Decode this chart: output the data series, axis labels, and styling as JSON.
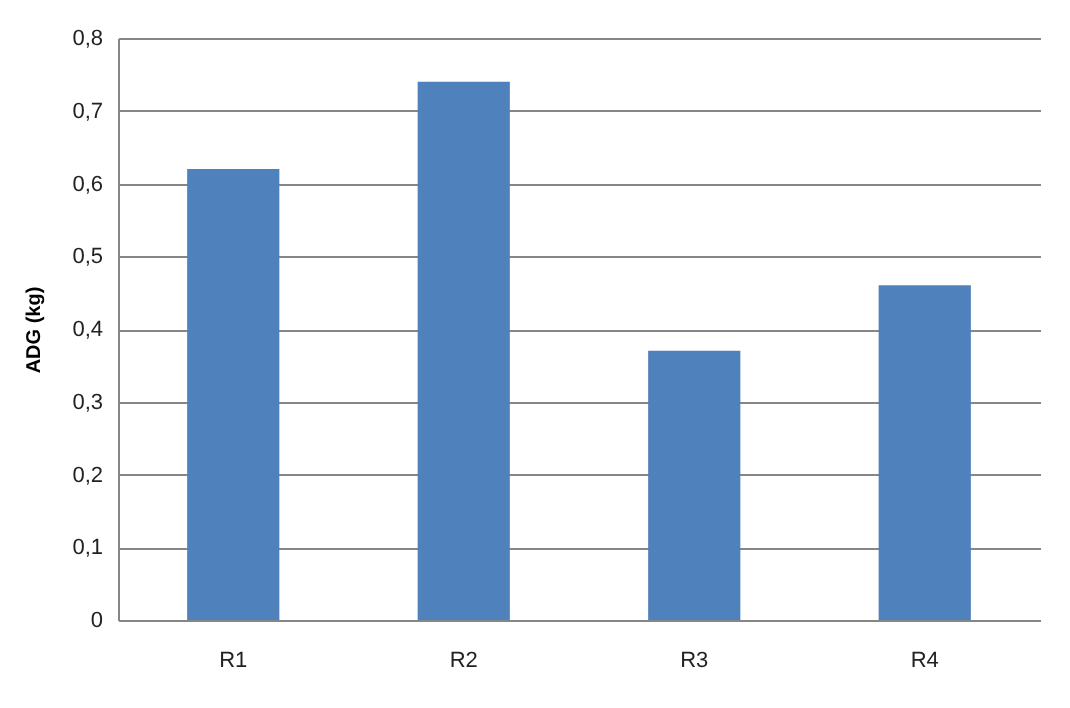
{
  "chart_data": {
    "type": "bar",
    "ylabel": "ADG (kg)",
    "categories": [
      "R1",
      "R2",
      "R3",
      "R4"
    ],
    "values": [
      0.62,
      0.74,
      0.37,
      0.46
    ],
    "color": "#4f81bd",
    "ylim": [
      0,
      0.8
    ],
    "yticks": [
      0,
      {
        "value": 0.1,
        "label": "0,1"
      },
      {
        "value": 0.2,
        "label": "0,2"
      },
      {
        "value": 0.3,
        "label": "0,3"
      },
      {
        "value": 0.4,
        "label": "0,4"
      },
      {
        "value": 0.5,
        "label": "0,5"
      },
      {
        "value": 0.6,
        "label": "0,6"
      },
      {
        "value": 0.7,
        "label": "0,7"
      },
      {
        "value": 0.8,
        "label": "0,8"
      }
    ],
    "grid": "y"
  }
}
